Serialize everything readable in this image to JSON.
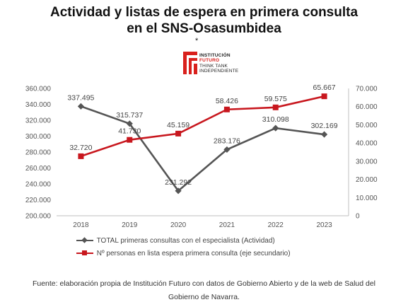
{
  "header": {
    "title_line1": "Actividad y listas de espera en primera consulta",
    "title_line2": "en el SNS-Osasumbidea",
    "star": "*"
  },
  "logo": {
    "line1": "INSTITUCIÓN",
    "line2": "FUTURO",
    "line3": "THINK TANK",
    "line4": "INDEPENDIENTE",
    "accent_color": "#d9211d"
  },
  "chart_data": {
    "type": "line",
    "x": [
      "2018",
      "2019",
      "2020",
      "2021",
      "2022",
      "2023"
    ],
    "series": [
      {
        "name": "TOTAL primeras consultas con el especialista (Actividad)",
        "axis": "primary",
        "color": "#555555",
        "marker": "diamond",
        "values": [
          337495,
          315737,
          231292,
          283176,
          310098,
          302169
        ],
        "labels": [
          "337.495",
          "315.737",
          "231.292",
          "283.176",
          "310.098",
          "302.169"
        ]
      },
      {
        "name": "Nº personas en lista espera primera consulta (eje secundario)",
        "axis": "secondary",
        "color": "#c8171e",
        "marker": "square",
        "values": [
          32720,
          41730,
          45159,
          58426,
          59575,
          65667
        ],
        "labels": [
          "32.720",
          "41.730",
          "45.159",
          "58.426",
          "59.575",
          "65.667"
        ]
      }
    ],
    "y_primary": {
      "min": 200000,
      "max": 360000,
      "step": 20000,
      "tick_labels": [
        "200.000",
        "220.000",
        "240.000",
        "260.000",
        "280.000",
        "300.000",
        "320.000",
        "340.000",
        "360.000"
      ]
    },
    "y_secondary": {
      "min": 0,
      "max": 70000,
      "step": 10000,
      "tick_labels": [
        "0",
        "10.000",
        "20.000",
        "30.000",
        "40.000",
        "50.000",
        "60.000",
        "70.000"
      ]
    },
    "grid": false,
    "legend_position": "bottom"
  },
  "footer": {
    "line1": "Fuente: elaboración propia de Institución Futuro con datos de Gobierno Abierto y de la web de Salud del",
    "line2": "Gobierno de Navarra."
  }
}
